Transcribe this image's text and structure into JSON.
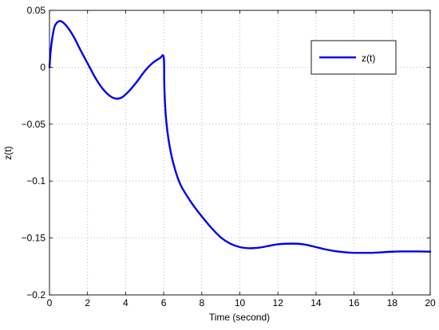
{
  "chart_data": {
    "type": "line",
    "xlabel": "Time (second)",
    "ylabel": "z(t)",
    "xlim": [
      0,
      20
    ],
    "ylim": [
      -0.2,
      0.05
    ],
    "x_ticks": [
      0,
      2,
      4,
      6,
      8,
      10,
      12,
      14,
      16,
      18,
      20
    ],
    "y_ticks": [
      {
        "value": 0.05,
        "label": "0.05"
      },
      {
        "value": 0,
        "label": "0"
      },
      {
        "value": -0.05,
        "label": "−0.05"
      },
      {
        "value": -0.1,
        "label": "−0.1"
      },
      {
        "value": -0.15,
        "label": "−0.15"
      },
      {
        "value": -0.2,
        "label": "−0.2"
      }
    ],
    "grid": true,
    "legend_position": "top-right",
    "series": [
      {
        "name": "z(t)",
        "color": "#0000ee",
        "x": [
          0,
          0.05,
          0.1,
          0.2,
          0.3,
          0.5,
          0.7,
          1.0,
          1.3,
          1.6,
          2.0,
          2.4,
          2.8,
          3.2,
          3.5,
          3.8,
          4.2,
          4.6,
          5.0,
          5.4,
          5.8,
          6.0,
          6.03,
          6.08,
          6.15,
          6.25,
          6.4,
          6.6,
          6.8,
          7.0,
          7.5,
          8.0,
          8.5,
          9.0,
          9.5,
          10.0,
          10.5,
          11.0,
          11.5,
          12.0,
          12.5,
          13.0,
          13.5,
          14.0,
          14.5,
          15.0,
          15.5,
          16.0,
          16.5,
          17.0,
          17.5,
          18.0,
          18.5,
          19.0,
          19.5,
          20.0
        ],
        "values": [
          0.0,
          0.012,
          0.02,
          0.031,
          0.037,
          0.0405,
          0.0395,
          0.034,
          0.026,
          0.016,
          0.0035,
          -0.009,
          -0.019,
          -0.0255,
          -0.0275,
          -0.0265,
          -0.0205,
          -0.0125,
          -0.0035,
          0.0035,
          0.008,
          0.009,
          -0.015,
          -0.035,
          -0.05,
          -0.063,
          -0.077,
          -0.09,
          -0.1,
          -0.107,
          -0.12,
          -0.131,
          -0.141,
          -0.1495,
          -0.155,
          -0.158,
          -0.159,
          -0.1585,
          -0.157,
          -0.1555,
          -0.155,
          -0.155,
          -0.156,
          -0.158,
          -0.16,
          -0.1615,
          -0.1625,
          -0.163,
          -0.163,
          -0.163,
          -0.1625,
          -0.162,
          -0.1618,
          -0.1618,
          -0.1618,
          -0.162
        ]
      }
    ]
  }
}
